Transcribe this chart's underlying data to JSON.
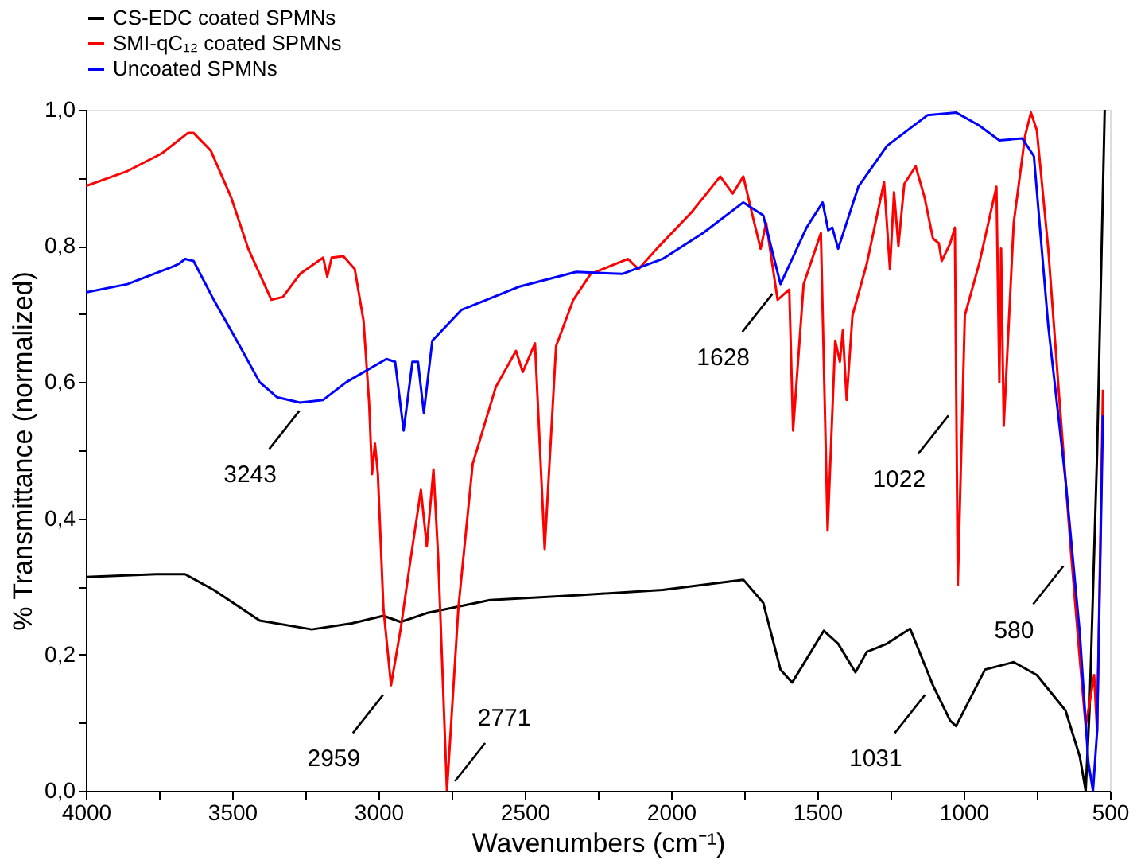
{
  "chart_data": {
    "type": "line",
    "xlabel": "Wavenumbers (cm⁻¹)",
    "ylabel": "% Transmittance (normalized)",
    "xlim": [
      4000,
      500
    ],
    "ylim": [
      0,
      1.0
    ],
    "xticks": [
      4000,
      {
        "value": 3750,
        "label": null
      },
      3500,
      {
        "value": 3250,
        "label": null
      },
      3000,
      {
        "value": 2750,
        "label": null
      },
      2500,
      {
        "value": 2250,
        "label": null
      },
      2000,
      {
        "value": 1750,
        "label": null
      },
      1500,
      {
        "value": 1250,
        "label": null
      },
      1000,
      {
        "value": 750,
        "label": null
      },
      500
    ],
    "yticks": [
      {
        "value": 0,
        "label": "0,0"
      },
      {
        "value": 0.1,
        "label": null
      },
      {
        "value": 0.2,
        "label": "0,2"
      },
      {
        "value": 0.3,
        "label": null
      },
      {
        "value": 0.4,
        "label": "0,4"
      },
      {
        "value": 0.5,
        "label": null
      },
      {
        "value": 0.6,
        "label": "0,6"
      },
      {
        "value": 0.7,
        "label": null
      },
      {
        "value": 0.8,
        "label": "0,8"
      },
      {
        "value": 0.9,
        "label": null
      },
      {
        "value": 1.0,
        "label": "1,0"
      }
    ],
    "grid": false,
    "legend": "top",
    "marker": "none",
    "line_style": "solid",
    "series": [
      {
        "name": "CS-EDC coated SPMNs",
        "color": "#000000",
        "x": [
          4000,
          3760,
          3661,
          3563,
          3406,
          3228,
          3091,
          2983,
          2924,
          2835,
          2619,
          2324,
          2029,
          1753,
          1685,
          1626,
          1586,
          1478,
          1429,
          1370,
          1331,
          1262,
          1183,
          1105,
          1046,
          1026,
          927,
          829,
          750,
          652,
          603,
          583,
          570,
          544,
          518
        ],
        "values": [
          0.314,
          0.318,
          0.318,
          0.295,
          0.25,
          0.237,
          0.246,
          0.257,
          0.248,
          0.261,
          0.28,
          0.287,
          0.295,
          0.31,
          0.276,
          0.178,
          0.159,
          0.235,
          0.216,
          0.174,
          0.204,
          0.216,
          0.238,
          0.155,
          0.103,
          0.095,
          0.178,
          0.189,
          0.17,
          0.118,
          0.05,
          0.0,
          0.118,
          0.495,
          1.0
        ]
      },
      {
        "name": "SMI-qC₁₂ coated SPMNs",
        "color": "#ff0000",
        "x": [
          4000,
          3858,
          3740,
          3651,
          3632,
          3573,
          3504,
          3445,
          3366,
          3327,
          3268,
          3189,
          3175,
          3160,
          3120,
          3081,
          3051,
          3032,
          3022,
          3012,
          3002,
          2983,
          2957,
          2924,
          2894,
          2855,
          2835,
          2812,
          2796,
          2766,
          2727,
          2678,
          2599,
          2530,
          2507,
          2465,
          2432,
          2393,
          2334,
          2275,
          2147,
          2111,
          2049,
          1931,
          1832,
          1789,
          1753,
          1724,
          1694,
          1675,
          1636,
          1596,
          1583,
          1547,
          1488,
          1465,
          1439,
          1423,
          1413,
          1400,
          1380,
          1331,
          1272,
          1252,
          1238,
          1223,
          1203,
          1164,
          1134,
          1105,
          1085,
          1075,
          1046,
          1030,
          1020,
          996,
          947,
          888,
          878,
          872,
          863,
          829,
          790,
          770,
          750,
          711,
          672,
          632,
          603,
          583,
          554,
          544,
          524
        ],
        "values": [
          0.888,
          0.91,
          0.936,
          0.966,
          0.966,
          0.94,
          0.872,
          0.796,
          0.721,
          0.725,
          0.759,
          0.783,
          0.755,
          0.783,
          0.785,
          0.766,
          0.69,
          0.57,
          0.465,
          0.51,
          0.465,
          0.268,
          0.155,
          0.238,
          0.329,
          0.442,
          0.359,
          0.472,
          0.344,
          0.0,
          0.268,
          0.48,
          0.593,
          0.646,
          0.615,
          0.657,
          0.355,
          0.653,
          0.721,
          0.759,
          0.781,
          0.766,
          0.796,
          0.849,
          0.902,
          0.877,
          0.902,
          0.849,
          0.796,
          0.834,
          0.721,
          0.736,
          0.529,
          0.744,
          0.819,
          0.382,
          0.661,
          0.63,
          0.676,
          0.574,
          0.698,
          0.774,
          0.894,
          0.766,
          0.879,
          0.8,
          0.891,
          0.917,
          0.872,
          0.811,
          0.804,
          0.778,
          0.804,
          0.827,
          0.302,
          0.698,
          0.774,
          0.887,
          0.6,
          0.796,
          0.536,
          0.834,
          0.962,
          0.996,
          0.97,
          0.796,
          0.57,
          0.344,
          0.193,
          0.095,
          0.17,
          0.087,
          0.589
        ]
      },
      {
        "name": "Uncoated SPMNs",
        "color": "#0000ff",
        "x": [
          4000,
          3858,
          3701,
          3681,
          3661,
          3632,
          3563,
          3484,
          3406,
          3347,
          3268,
          3189,
          3110,
          2973,
          2943,
          2914,
          2884,
          2865,
          2845,
          2816,
          2717,
          2521,
          2324,
          2167,
          2029,
          1891,
          1753,
          1685,
          1626,
          1537,
          1482,
          1463,
          1449,
          1429,
          1360,
          1262,
          1124,
          1026,
          947,
          878,
          800,
          760,
          711,
          652,
          603,
          574,
          558,
          544,
          524
        ],
        "values": [
          0.732,
          0.744,
          0.77,
          0.774,
          0.781,
          0.778,
          0.721,
          0.661,
          0.6,
          0.578,
          0.57,
          0.574,
          0.6,
          0.634,
          0.63,
          0.529,
          0.63,
          0.63,
          0.555,
          0.661,
          0.706,
          0.74,
          0.762,
          0.759,
          0.781,
          0.819,
          0.864,
          0.845,
          0.744,
          0.827,
          0.864,
          0.823,
          0.827,
          0.796,
          0.887,
          0.947,
          0.992,
          0.996,
          0.977,
          0.955,
          0.958,
          0.932,
          0.683,
          0.457,
          0.231,
          0.042,
          0.0,
          0.087,
          0.551
        ]
      }
    ],
    "annotations": [
      {
        "text": "3243",
        "x": 3243,
        "y": 0.572
      },
      {
        "text": "2959",
        "x": 2957,
        "y": 0.155
      },
      {
        "text": "2771",
        "x": 2766,
        "y": 0.0
      },
      {
        "text": "1628",
        "x": 1626,
        "y": 0.744
      },
      {
        "text": "1022",
        "x": 1025,
        "y": 0.565
      },
      {
        "text": "580",
        "x": 632,
        "y": 0.344
      },
      {
        "text": "1031",
        "x": 1105,
        "y": 0.155
      }
    ]
  }
}
